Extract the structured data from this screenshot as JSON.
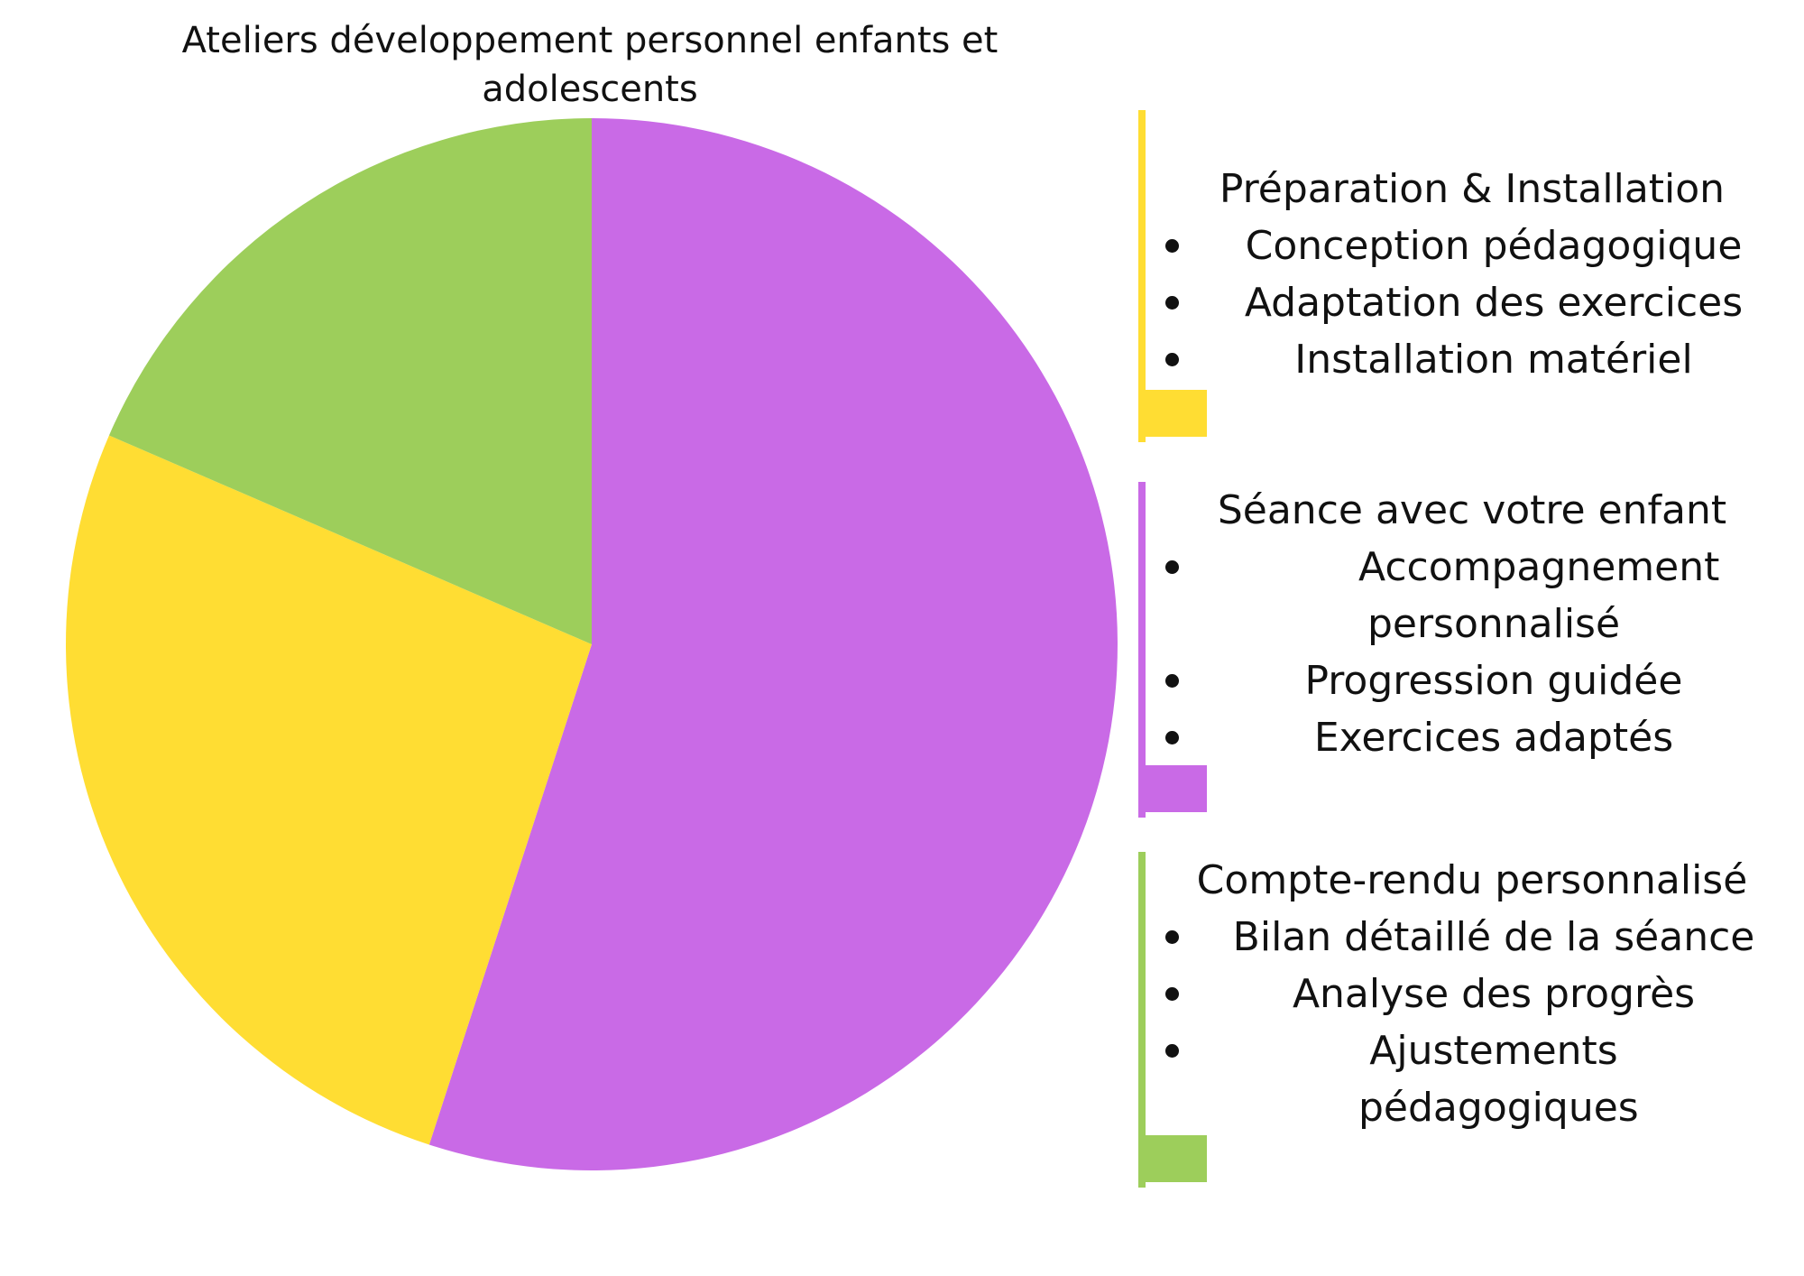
{
  "chart_data": {
    "type": "pie",
    "title": "Ateliers développement personnel enfants et adolescents",
    "slices": [
      {
        "label": "Séance avec votre enfant",
        "value": 55,
        "color": "#c96ae6"
      },
      {
        "label": "Préparation & Installation",
        "value": 26.5,
        "color": "#ffdd33"
      },
      {
        "label": "Compte-rendu personnalisé",
        "value": 18.5,
        "color": "#9dce5b"
      }
    ],
    "start_angle_deg": 0,
    "direction": "clockwise",
    "legend_position": "right"
  },
  "legend": [
    {
      "heading": "Préparation & Installation",
      "color": "#ffdd33",
      "items": [
        "Conception pédagogique",
        "Adaptation des exercices",
        "Installation matériel"
      ]
    },
    {
      "heading": "Séance avec votre enfant",
      "color": "#c96ae6",
      "items": [
        "Accompagnement personnalisé",
        "Progression guidée",
        "Exercices adaptés"
      ]
    },
    {
      "heading": "Compte-rendu personnalisé",
      "color": "#9dce5b",
      "items": [
        "Bilan détaillé de la séance",
        "Analyse des progrès",
        "Ajustements pédagogiques"
      ]
    }
  ]
}
